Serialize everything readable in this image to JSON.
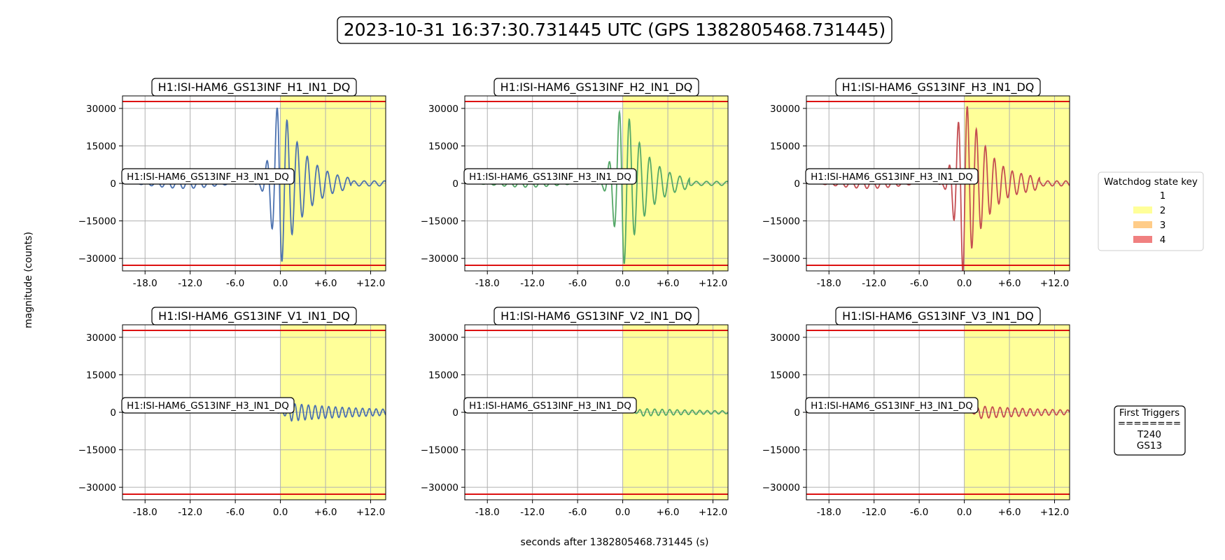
{
  "figure": {
    "suptitle": "2023-10-31 16:37:30.731445 UTC (GPS 1382805468.731445)",
    "ylabel": "magnitude (counts)",
    "xlabel": "seconds after 1382805468.731445 (s)"
  },
  "legend": {
    "title": "Watchdog state key",
    "entries": [
      {
        "label": "1",
        "color": "#ffffff"
      },
      {
        "label": "2",
        "color": "#ffff99"
      },
      {
        "label": "3",
        "color": "#ffcc88"
      },
      {
        "label": "4",
        "color": "#f08080"
      }
    ]
  },
  "triggers": {
    "title": "First Triggers",
    "separator": "========",
    "items": [
      "T240",
      "GS13"
    ]
  },
  "chart_data": [
    {
      "type": "line",
      "title": "H1:ISI-HAM6_GS13INF_H1_IN1_DQ",
      "annotation": "H1:ISI-HAM6_GS13INF_H3_IN1_DQ",
      "color": "#4c72b0",
      "xlim": [
        -21,
        14
      ],
      "ylim": [
        -35000,
        35000
      ],
      "xticks": [
        -18,
        -12,
        -6,
        0,
        6,
        12
      ],
      "xtick_labels": [
        "-18.0",
        "-12.0",
        "-6.0",
        "0.0",
        "+6.0",
        "+12.0"
      ],
      "yticks": [
        -30000,
        -15000,
        0,
        15000,
        30000
      ],
      "yticks_labels": [
        "−30000",
        "−15000",
        "0",
        "15000",
        "30000"
      ],
      "threshold": 32767,
      "state2_start": 0,
      "grid": true,
      "signal": {
        "pre_amp": 2000,
        "onset": -3.5,
        "peak_amp": 36000,
        "peak_t": -0.2,
        "decay": 3.2,
        "period": 1.35,
        "late_amp": 1000
      }
    },
    {
      "type": "line",
      "title": "H1:ISI-HAM6_GS13INF_H2_IN1_DQ",
      "annotation": "H1:ISI-HAM6_GS13INF_H3_IN1_DQ",
      "color": "#55a868",
      "xlim": [
        -21,
        14
      ],
      "ylim": [
        -35000,
        35000
      ],
      "xticks": [
        -18,
        -12,
        -6,
        0,
        6,
        12
      ],
      "xtick_labels": [
        "-18.0",
        "-12.0",
        "-6.0",
        "0.0",
        "+6.0",
        "+12.0"
      ],
      "yticks": [
        -30000,
        -15000,
        0,
        15000,
        30000
      ],
      "yticks_labels": [
        "−30000",
        "−15000",
        "0",
        "15000",
        "30000"
      ],
      "threshold": 32767,
      "state2_start": 0,
      "grid": true,
      "signal": {
        "pre_amp": 1500,
        "onset": -3.5,
        "peak_amp": 36000,
        "peak_t": -0.1,
        "decay": 3.0,
        "period": 1.35,
        "late_amp": 800
      }
    },
    {
      "type": "line",
      "title": "H1:ISI-HAM6_GS13INF_H3_IN1_DQ",
      "annotation": "H1:ISI-HAM6_GS13INF_H3_IN1_DQ",
      "color": "#c44e52",
      "xlim": [
        -21,
        14
      ],
      "ylim": [
        -35000,
        35000
      ],
      "xticks": [
        -18,
        -12,
        -6,
        0,
        6,
        12
      ],
      "xtick_labels": [
        "-18.0",
        "-12.0",
        "-6.0",
        "0.0",
        "+6.0",
        "+12.0"
      ],
      "yticks": [
        -30000,
        -15000,
        0,
        15000,
        30000
      ],
      "yticks_labels": [
        "−30000",
        "−15000",
        "0",
        "15000",
        "30000"
      ],
      "threshold": 32767,
      "state2_start": 0,
      "grid": true,
      "signal": {
        "pre_amp": 2000,
        "onset": -3.5,
        "peak_amp": 36000,
        "peak_t": -0.2,
        "decay": 3.4,
        "period": 1.2,
        "late_amp": 1000
      }
    },
    {
      "type": "line",
      "title": "H1:ISI-HAM6_GS13INF_V1_IN1_DQ",
      "annotation": "H1:ISI-HAM6_GS13INF_H3_IN1_DQ",
      "color": "#4c72b0",
      "xlim": [
        -21,
        14
      ],
      "ylim": [
        -35000,
        35000
      ],
      "xticks": [
        -18,
        -12,
        -6,
        0,
        6,
        12
      ],
      "xtick_labels": [
        "-18.0",
        "-12.0",
        "-6.0",
        "0.0",
        "+6.0",
        "+12.0"
      ],
      "yticks": [
        -30000,
        -15000,
        0,
        15000,
        30000
      ],
      "yticks_labels": [
        "−30000",
        "−15000",
        "0",
        "15000",
        "30000"
      ],
      "threshold": 32767,
      "state2_start": 0,
      "grid": true,
      "signal": {
        "pre_amp": 0,
        "onset": -1.0,
        "peak_amp": 3500,
        "peak_t": 1.5,
        "decay": 12,
        "period": 0.9,
        "late_amp": 1200
      }
    },
    {
      "type": "line",
      "title": "H1:ISI-HAM6_GS13INF_V2_IN1_DQ",
      "annotation": "H1:ISI-HAM6_GS13INF_H3_IN1_DQ",
      "color": "#55a868",
      "xlim": [
        -21,
        14
      ],
      "ylim": [
        -35000,
        35000
      ],
      "xticks": [
        -18,
        -12,
        -6,
        0,
        6,
        12
      ],
      "xtick_labels": [
        "-18.0",
        "-12.0",
        "-6.0",
        "0.0",
        "+6.0",
        "+12.0"
      ],
      "yticks": [
        -30000,
        -15000,
        0,
        15000,
        30000
      ],
      "yticks_labels": [
        "−30000",
        "−15000",
        "0",
        "15000",
        "30000"
      ],
      "threshold": 32767,
      "state2_start": 0,
      "grid": true,
      "signal": {
        "pre_amp": 0,
        "onset": 1.0,
        "peak_amp": 1500,
        "peak_t": 2.5,
        "decay": 12,
        "period": 1.0,
        "late_amp": 600
      }
    },
    {
      "type": "line",
      "title": "H1:ISI-HAM6_GS13INF_V3_IN1_DQ",
      "annotation": "H1:ISI-HAM6_GS13INF_H3_IN1_DQ",
      "color": "#c44e52",
      "xlim": [
        -21,
        14
      ],
      "ylim": [
        -35000,
        35000
      ],
      "xticks": [
        -18,
        -12,
        -6,
        0,
        6,
        12
      ],
      "xtick_labels": [
        "-18.0",
        "-12.0",
        "-6.0",
        "0.0",
        "+6.0",
        "+12.0"
      ],
      "yticks": [
        -30000,
        -15000,
        0,
        15000,
        30000
      ],
      "yticks_labels": [
        "−30000",
        "−15000",
        "0",
        "15000",
        "30000"
      ],
      "threshold": 32767,
      "state2_start": 0,
      "grid": true,
      "signal": {
        "pre_amp": 0,
        "onset": 0.5,
        "peak_amp": 2500,
        "peak_t": 2.0,
        "decay": 12,
        "period": 1.0,
        "late_amp": 900
      }
    }
  ]
}
